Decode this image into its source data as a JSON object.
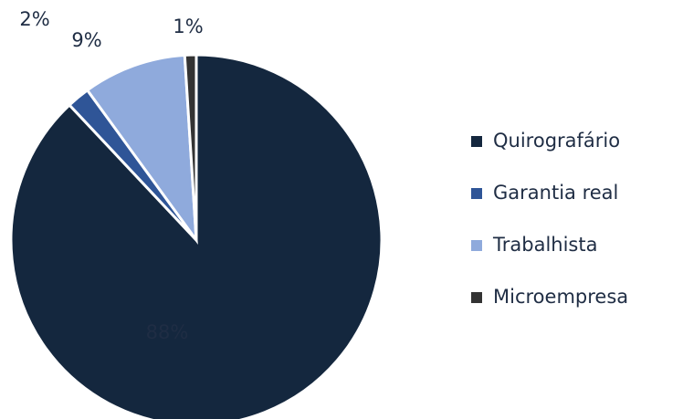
{
  "chart_data": {
    "type": "pie",
    "categories": [
      "Quirografário",
      "Garantia real",
      "Trabalhista",
      "Microempresa"
    ],
    "values": [
      88,
      2,
      9,
      1
    ],
    "value_labels": [
      "88%",
      "2%",
      "9%",
      "1%"
    ],
    "colors": [
      "#14273e",
      "#2f5597",
      "#8faadc",
      "#333333"
    ],
    "legend": "right"
  }
}
